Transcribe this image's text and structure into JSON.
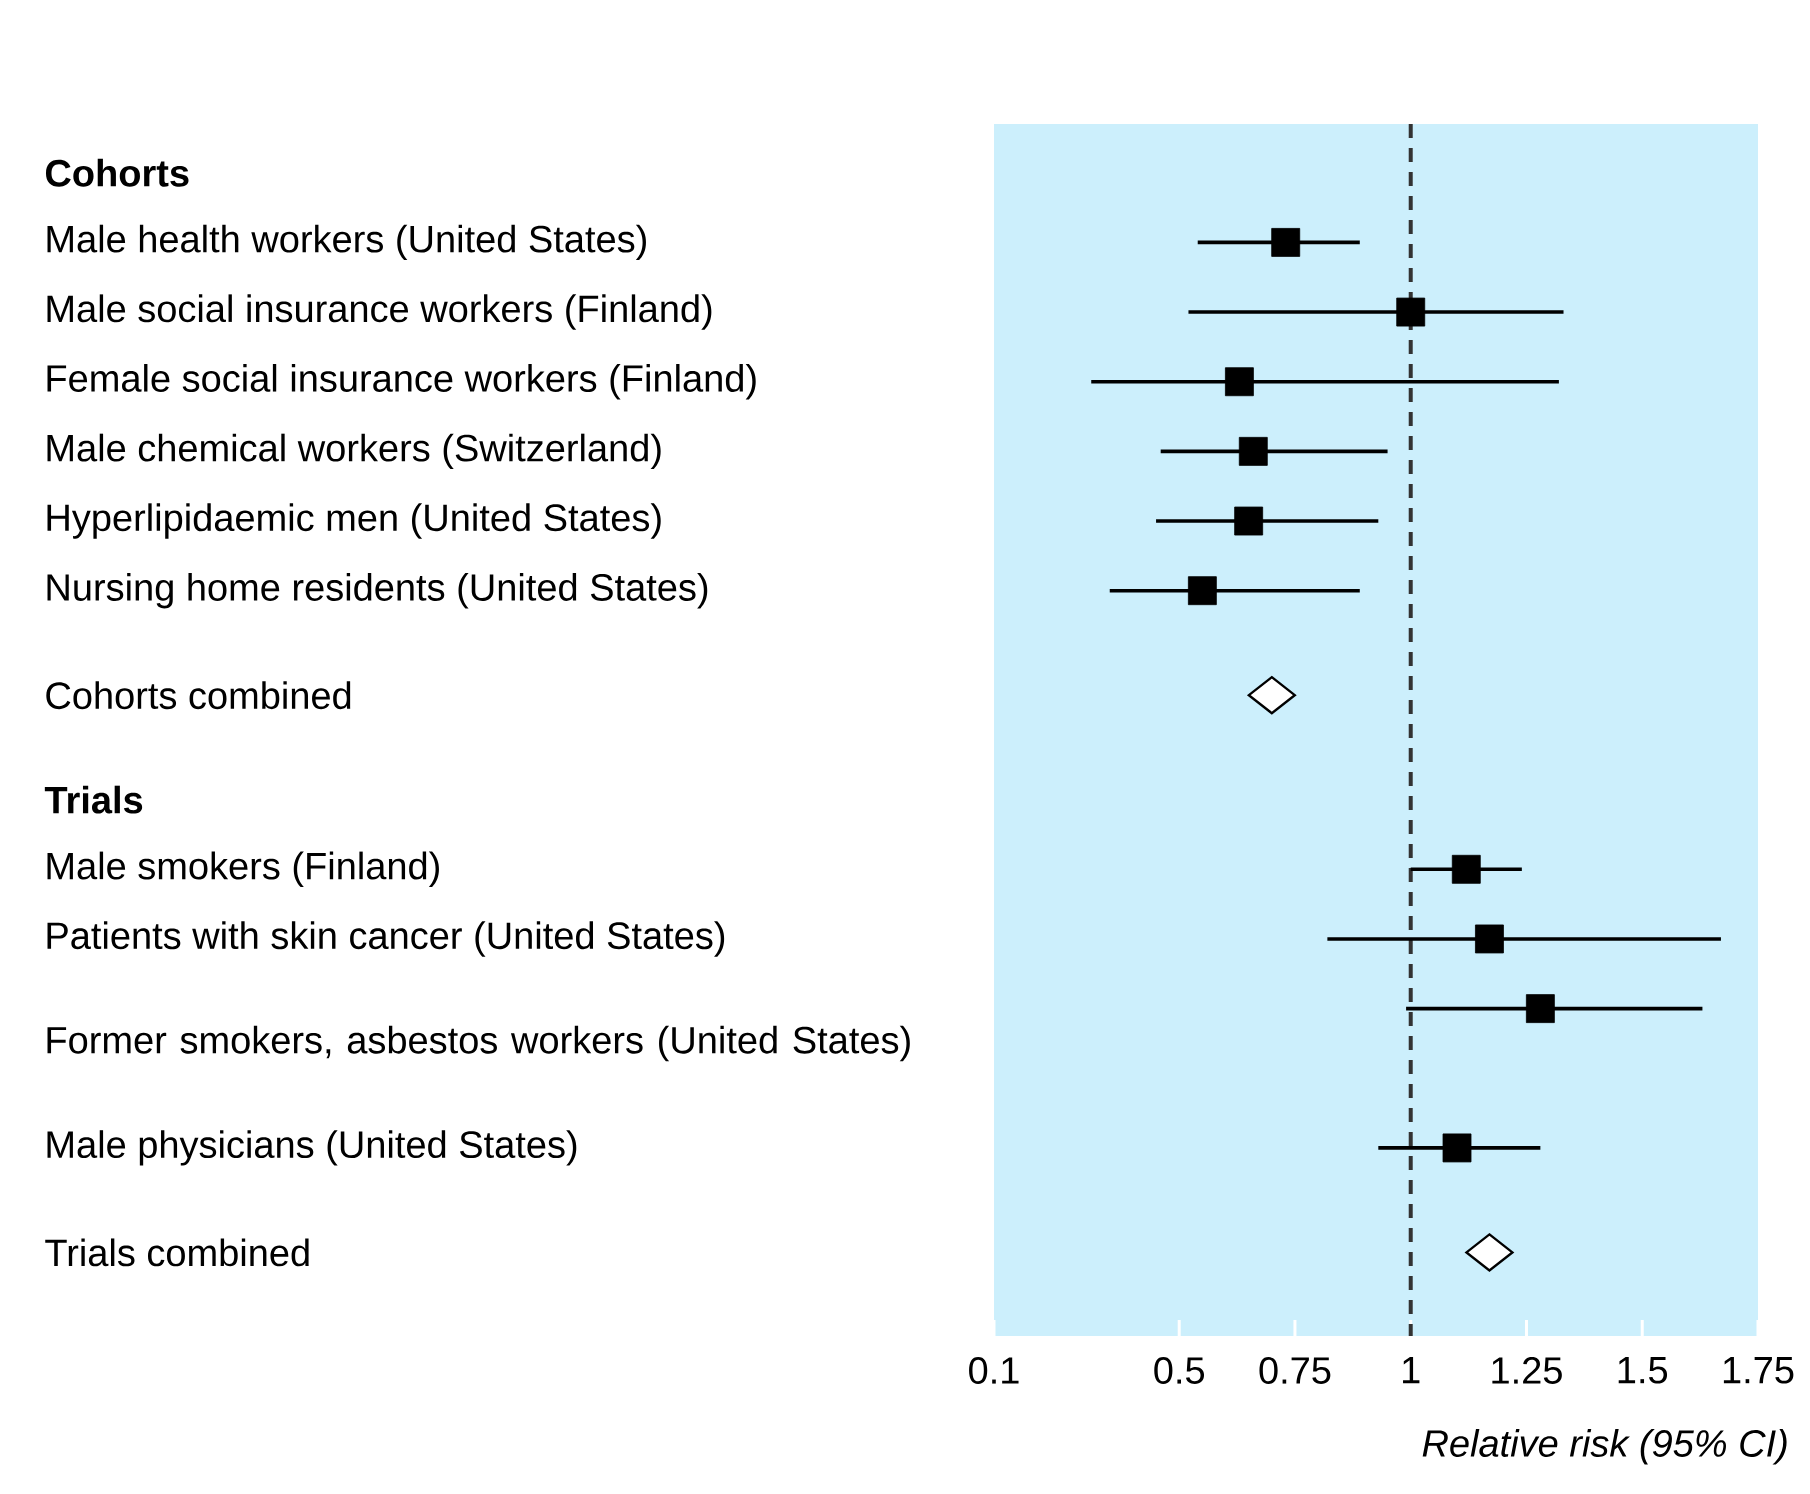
{
  "chart_data": {
    "type": "scatter",
    "orientation": "horizontal",
    "xlabel": "Relative risk (95% CI)",
    "categories": [
      "Cohorts",
      "Male health workers (United States)",
      "Male social insurance workers (Finland)",
      "Female social insurance workers (Finland)",
      "Male chemical workers (Switzerland)",
      "Hyperlipidaemic men (United States)",
      "Nursing home residents (United States)",
      "Cohorts combined",
      "Trials",
      "Male smokers (Finland)",
      "Patients with skin cancer (United States)",
      "Former smokers, asbestos workers (United States)",
      "Male physicians (United States)",
      "Trials combined"
    ],
    "series": [
      {
        "marker": "square",
        "color": "#000000",
        "values": [
          null,
          0.73,
          1.0,
          0.63,
          0.66,
          0.65,
          0.55,
          null,
          null,
          1.12,
          1.17,
          1.28,
          1.1,
          null
        ],
        "errors": [
          null,
          [
            0.54,
            0.89
          ],
          [
            0.52,
            1.33
          ],
          [
            0.31,
            1.32
          ],
          [
            0.46,
            0.95
          ],
          [
            0.45,
            0.93
          ],
          [
            0.35,
            0.89
          ],
          null,
          null,
          [
            1.0,
            1.24
          ],
          [
            0.82,
            1.67
          ],
          [
            0.99,
            1.63
          ],
          [
            0.93,
            1.28
          ],
          null
        ]
      },
      {
        "marker": "diamond",
        "color": "#ffffff",
        "values": [
          null,
          null,
          null,
          null,
          null,
          null,
          null,
          0.7,
          null,
          null,
          null,
          null,
          null,
          1.17
        ]
      }
    ],
    "xlim": [
      0.1,
      1.75
    ],
    "xticks": [
      0.1,
      0.5,
      0.75,
      1,
      1.25,
      1.5,
      1.75
    ],
    "ref_lines": [
      {
        "axis": "x",
        "value": 1,
        "line_style": "dashed",
        "color": "#333333"
      }
    ]
  }
}
